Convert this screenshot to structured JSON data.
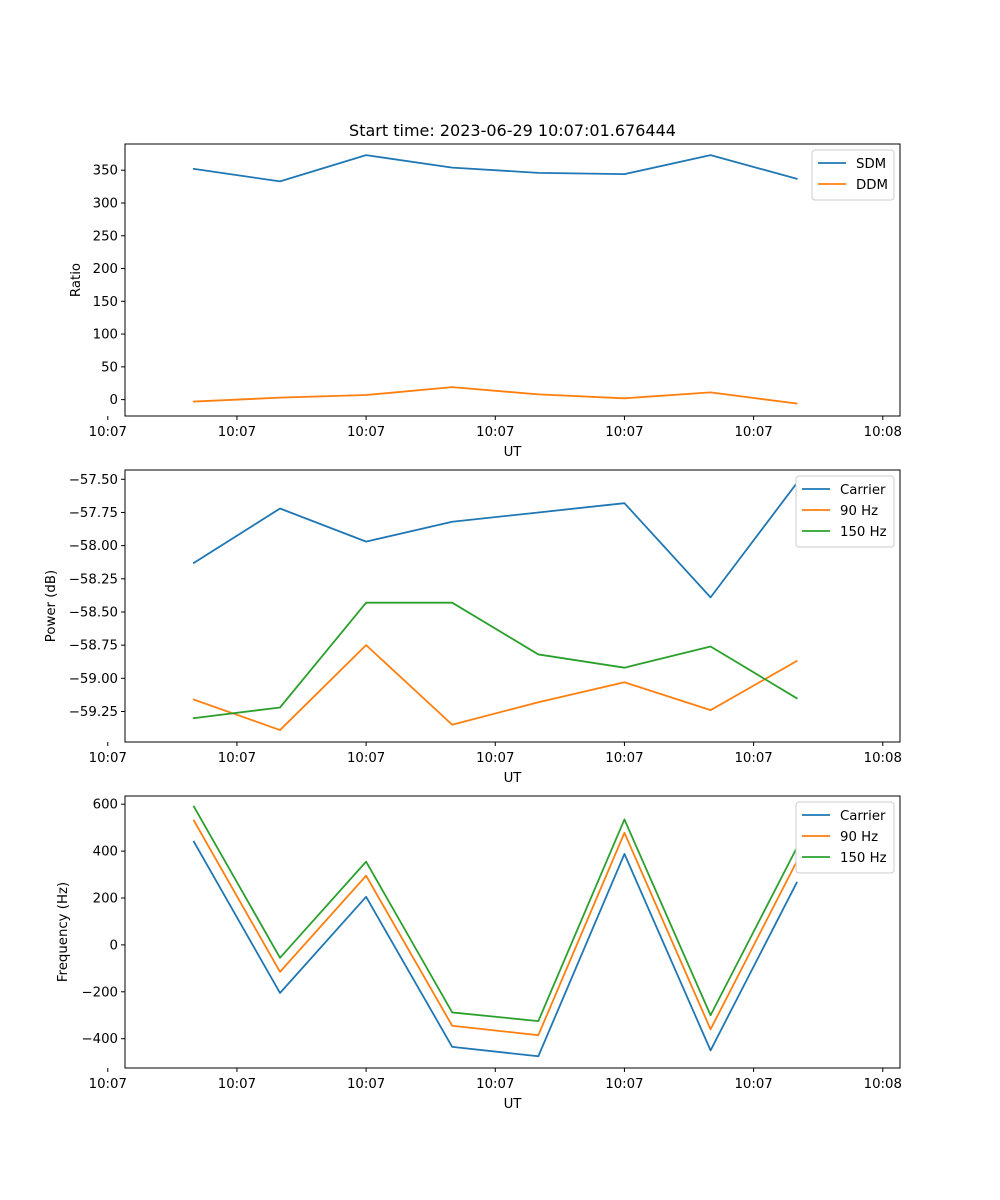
{
  "figure": {
    "title": "Start time: 2023-06-29 10:07:01.676444"
  },
  "chart_data": [
    {
      "type": "line",
      "title": "Start time: 2023-06-29 10:07:01.676444",
      "xlabel": "UT",
      "ylabel": "Ratio",
      "x": [
        1,
        2,
        3,
        4,
        5,
        6,
        7,
        8
      ],
      "xlim": [
        0.2,
        9.2
      ],
      "ylim": [
        -25,
        390
      ],
      "yticks": [
        0,
        50,
        100,
        150,
        200,
        250,
        300,
        350
      ],
      "xticks": [
        {
          "pos": 0,
          "label": "10:07"
        },
        {
          "pos": 1.5,
          "label": "10:07"
        },
        {
          "pos": 3,
          "label": "10:07"
        },
        {
          "pos": 4.5,
          "label": "10:07"
        },
        {
          "pos": 6,
          "label": "10:07"
        },
        {
          "pos": 7.5,
          "label": "10:07"
        },
        {
          "pos": 9,
          "label": "10:08"
        }
      ],
      "legend": "top-right",
      "series": [
        {
          "name": "SDM",
          "color": "#1f77b4",
          "values": [
            352,
            333,
            373,
            354,
            346,
            344,
            373,
            337
          ]
        },
        {
          "name": "DDM",
          "color": "#ff7f0e",
          "values": [
            -3,
            3,
            7,
            19,
            8,
            2,
            11,
            -6
          ]
        }
      ]
    },
    {
      "type": "line",
      "title": "",
      "xlabel": "UT",
      "ylabel": "Power (dB)",
      "x": [
        1,
        2,
        3,
        4,
        5,
        6,
        7,
        8
      ],
      "xlim": [
        0.2,
        9.2
      ],
      "ylim": [
        -59.48,
        -57.43
      ],
      "yticks": [
        -59.25,
        -59.0,
        -58.75,
        -58.5,
        -58.25,
        -58.0,
        -57.75,
        -57.5
      ],
      "ytick_labels": [
        "−59.25",
        "−59.00",
        "−58.75",
        "−58.50",
        "−58.25",
        "−58.00",
        "−57.75",
        "−57.50"
      ],
      "xticks": [
        {
          "pos": 0,
          "label": "10:07"
        },
        {
          "pos": 1.5,
          "label": "10:07"
        },
        {
          "pos": 3,
          "label": "10:07"
        },
        {
          "pos": 4.5,
          "label": "10:07"
        },
        {
          "pos": 6,
          "label": "10:07"
        },
        {
          "pos": 7.5,
          "label": "10:07"
        },
        {
          "pos": 9,
          "label": "10:08"
        }
      ],
      "legend": "top-right",
      "series": [
        {
          "name": "Carrier",
          "color": "#1f77b4",
          "values": [
            -58.13,
            -57.72,
            -57.97,
            -57.82,
            -57.75,
            -57.68,
            -58.39,
            -57.53
          ]
        },
        {
          "name": "90 Hz",
          "color": "#ff7f0e",
          "values": [
            -59.16,
            -59.39,
            -58.75,
            -59.35,
            -59.18,
            -59.03,
            -59.24,
            -58.87
          ]
        },
        {
          "name": "150 Hz",
          "color": "#2ca02c",
          "values": [
            -59.3,
            -59.22,
            -58.43,
            -58.43,
            -58.82,
            -58.92,
            -58.76,
            -59.15
          ]
        }
      ]
    },
    {
      "type": "line",
      "title": "",
      "xlabel": "UT",
      "ylabel": "Frequency (Hz)",
      "x": [
        1,
        2,
        3,
        4,
        5,
        6,
        7,
        8
      ],
      "xlim": [
        0.2,
        9.2
      ],
      "ylim": [
        -525,
        635
      ],
      "yticks": [
        -400,
        -200,
        0,
        200,
        400,
        600
      ],
      "ytick_labels": [
        "−400",
        "−200",
        "0",
        "200",
        "400",
        "600"
      ],
      "xticks": [
        {
          "pos": 0,
          "label": "10:07"
        },
        {
          "pos": 1.5,
          "label": "10:07"
        },
        {
          "pos": 3,
          "label": "10:07"
        },
        {
          "pos": 4.5,
          "label": "10:07"
        },
        {
          "pos": 6,
          "label": "10:07"
        },
        {
          "pos": 7.5,
          "label": "10:07"
        },
        {
          "pos": 9,
          "label": "10:08"
        }
      ],
      "legend": "top-right",
      "series": [
        {
          "name": "Carrier",
          "color": "#1f77b4",
          "values": [
            440,
            -205,
            205,
            -435,
            -475,
            388,
            -450,
            265
          ]
        },
        {
          "name": "90 Hz",
          "color": "#ff7f0e",
          "values": [
            530,
            -115,
            295,
            -345,
            -385,
            478,
            -360,
            355
          ]
        },
        {
          "name": "150 Hz",
          "color": "#2ca02c",
          "values": [
            590,
            -55,
            355,
            -288,
            -325,
            535,
            -300,
            413
          ]
        }
      ]
    }
  ]
}
